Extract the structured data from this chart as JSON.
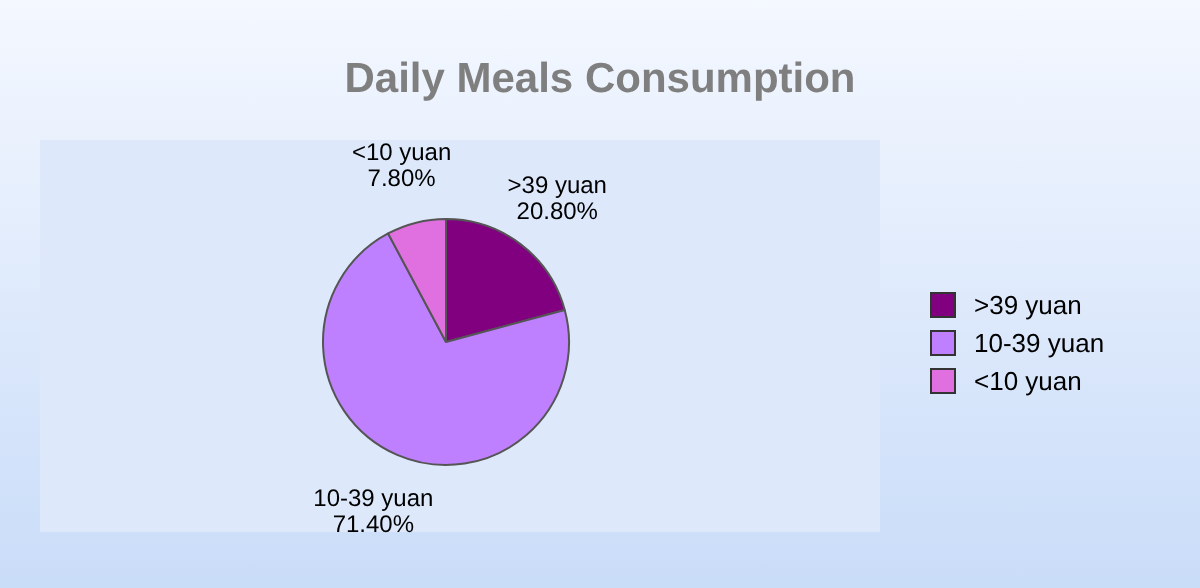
{
  "chart_data": {
    "type": "pie",
    "title": "Daily Meals Consumption",
    "categories": [
      ">39 yuan",
      "10-39 yuan",
      "<10 yuan"
    ],
    "values": [
      20.8,
      71.4,
      7.8
    ],
    "value_labels": [
      "20.80%",
      "71.40%",
      "7.80%"
    ],
    "colors": [
      "#800080",
      "#bf80ff",
      "#e070e0"
    ],
    "legend": "right"
  }
}
